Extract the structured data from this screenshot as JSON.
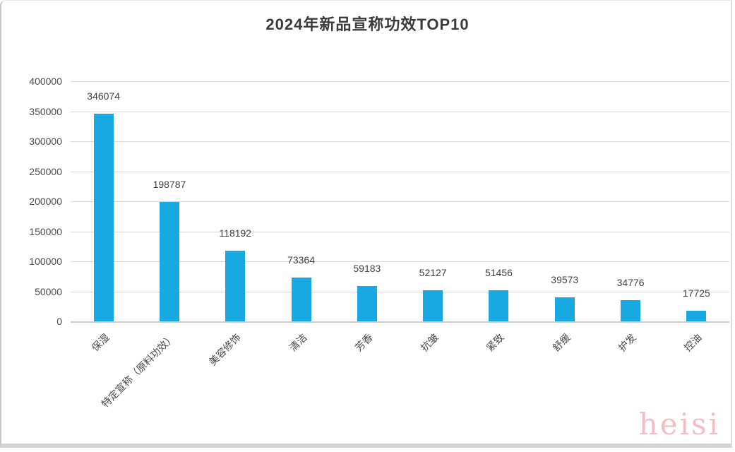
{
  "page": {
    "title": "2024年新品宣称功效TOP10",
    "watermark": "heisi"
  },
  "chart_data": {
    "type": "bar",
    "title": "2024年新品宣称功效TOP10",
    "categories": [
      "保湿",
      "特定宣称（原料功效）",
      "美容修饰",
      "清洁",
      "芳香",
      "抗皱",
      "紧致",
      "舒缓",
      "护发",
      "控油"
    ],
    "values": [
      346074,
      198787,
      118192,
      73364,
      59183,
      52127,
      51456,
      39573,
      34776,
      17725
    ],
    "bar_value_labels": [
      "346074",
      "198787",
      "118192",
      "73364",
      "59183",
      "52127",
      "51456",
      "39573",
      "34776",
      "17725"
    ],
    "xlabel": "",
    "ylabel": "",
    "ylim": [
      0,
      400000
    ],
    "ytick_interval": 50000,
    "ytick_labels": [
      "0",
      "50000",
      "100000",
      "150000",
      "200000",
      "250000",
      "300000",
      "350000",
      "400000"
    ],
    "grid": true,
    "legend_position": "none",
    "bar_color": "#18a9e2",
    "gridline_color": "#d9d9d9",
    "axis_line_color": "#cfcfcf",
    "text_color": "#404040",
    "watermark_color": "#f6bcc4",
    "x_label_rotation_deg": 45
  }
}
